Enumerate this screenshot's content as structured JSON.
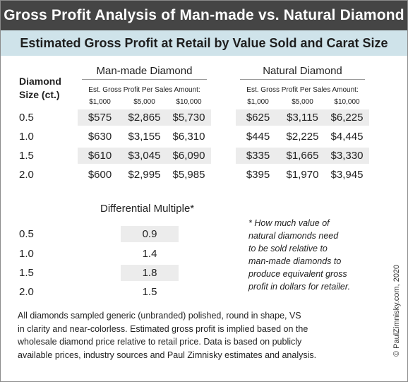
{
  "title": "Gross Profit Analysis of Man-made vs. Natural Diamond",
  "subtitle": "Estimated Gross Profit at Retail by Value Sold and Carat Size",
  "size_header": [
    "Diamond",
    "Size (ct.)"
  ],
  "groups": [
    {
      "title": "Man-made Diamond",
      "subheader": "Est. Gross Profit Per Sales Amount:",
      "amounts": [
        "$1,000",
        "$5,000",
        "$10,000"
      ]
    },
    {
      "title": "Natural Diamond",
      "subheader": "Est. Gross Profit Per Sales Amount:",
      "amounts": [
        "$1,000",
        "$5,000",
        "$10,000"
      ]
    }
  ],
  "rows": [
    {
      "size": "0.5",
      "manmade": [
        "$575",
        "$2,865",
        "$5,730"
      ],
      "natural": [
        "$625",
        "$3,115",
        "$6,225"
      ]
    },
    {
      "size": "1.0",
      "manmade": [
        "$630",
        "$3,155",
        "$6,310"
      ],
      "natural": [
        "$445",
        "$2,225",
        "$4,445"
      ]
    },
    {
      "size": "1.5",
      "manmade": [
        "$610",
        "$3,045",
        "$6,090"
      ],
      "natural": [
        "$335",
        "$1,665",
        "$3,330"
      ]
    },
    {
      "size": "2.0",
      "manmade": [
        "$600",
        "$2,995",
        "$5,985"
      ],
      "natural": [
        "$395",
        "$1,970",
        "$3,945"
      ]
    }
  ],
  "differential": {
    "title": "Differential Multiple*",
    "rows": [
      {
        "size": "0.5",
        "value": "0.9"
      },
      {
        "size": "1.0",
        "value": "1.4"
      },
      {
        "size": "1.5",
        "value": "1.8"
      },
      {
        "size": "2.0",
        "value": "1.5"
      }
    ]
  },
  "note_lines": [
    "* How much value of",
    "natural diamonds need",
    "to be sold relative to",
    "man-made diamonds to",
    "produce equivalent gross",
    "profit in dollars for retailer."
  ],
  "footer_lines": [
    "All diamonds sampled generic (unbranded) polished, round in shape, VS",
    "in clarity and near-colorless. Estimated gross profit is implied based on the",
    "wholesale diamond price relative to retail price. Data is based on publicly",
    "available prices, industry sources and Paul Zimnisky estimates and analysis."
  ],
  "copyright": "© PaulZimnisky.com, 2020"
}
